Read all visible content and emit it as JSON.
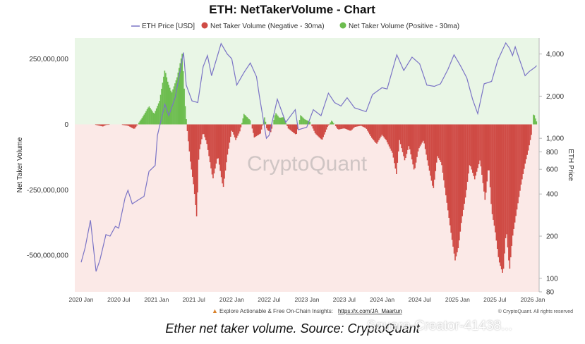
{
  "chart_data": {
    "type": "bar+line",
    "title": "ETH: NetTakerVolume - Chart",
    "legend": {
      "placement": "top-center",
      "entries": [
        {
          "label": "ETH Price [USD]",
          "color": "#7b74c6",
          "marker": "line"
        },
        {
          "label": "Net Taker Volume (Negative - 30ma)",
          "color": "#cf4b45",
          "marker": "dot"
        },
        {
          "label": "Net Taker Volume (Positive - 30ma)",
          "color": "#6dbd4f",
          "marker": "dot"
        }
      ]
    },
    "left_axis": {
      "label": "Net Taker Volume",
      "ticks": [
        250000000,
        0,
        -250000000,
        -500000000
      ],
      "tick_labels": [
        "250,000,000",
        "0",
        "-250,000,000",
        "-500,000,000"
      ],
      "range": [
        -640000000,
        330000000
      ]
    },
    "right_axis": {
      "label": "ETH Price",
      "scale": "log",
      "ticks": [
        4000,
        2000,
        1000,
        800,
        600,
        400,
        200,
        100,
        80
      ],
      "tick_labels": [
        "4,000",
        "2,000",
        "1,000",
        "800",
        "600",
        "400",
        "200",
        "100",
        "80"
      ],
      "range": [
        80,
        5200
      ]
    },
    "x_axis": {
      "range": [
        "2019-12-01",
        "2026-02-01"
      ],
      "ticks": [
        "2020-01",
        "2020-07",
        "2021-01",
        "2021-07",
        "2022-01",
        "2022-07",
        "2023-01",
        "2023-07",
        "2024-01",
        "2024-07",
        "2025-01",
        "2025-07",
        "2026-01"
      ],
      "tick_labels": [
        "2020 Jan",
        "2020 Jul",
        "2021 Jan",
        "2021 Jul",
        "2022 Jan",
        "2022 Jul",
        "2023 Jan",
        "2023 Jul",
        "2024 Jan",
        "2024 Jul",
        "2025 Jan",
        "2025 Jul",
        "2026 Jan"
      ]
    },
    "eth_price_series": {
      "name": "ETH Price [USD]",
      "points": [
        [
          "2020-01-01",
          130
        ],
        [
          "2020-01-20",
          165
        ],
        [
          "2020-02-15",
          260
        ],
        [
          "2020-03-13",
          112
        ],
        [
          "2020-04-01",
          135
        ],
        [
          "2020-04-30",
          205
        ],
        [
          "2020-05-20",
          200
        ],
        [
          "2020-06-15",
          235
        ],
        [
          "2020-07-01",
          228
        ],
        [
          "2020-08-01",
          375
        ],
        [
          "2020-08-15",
          425
        ],
        [
          "2020-09-05",
          340
        ],
        [
          "2020-10-01",
          360
        ],
        [
          "2020-11-01",
          385
        ],
        [
          "2020-11-25",
          580
        ],
        [
          "2020-12-25",
          640
        ],
        [
          "2021-01-05",
          1050
        ],
        [
          "2021-02-10",
          1750
        ],
        [
          "2021-03-01",
          1450
        ],
        [
          "2021-04-01",
          1950
        ],
        [
          "2021-05-12",
          4100
        ],
        [
          "2021-05-25",
          2400
        ],
        [
          "2021-06-22",
          1850
        ],
        [
          "2021-07-20",
          1800
        ],
        [
          "2021-08-15",
          3250
        ],
        [
          "2021-09-05",
          3900
        ],
        [
          "2021-09-25",
          2800
        ],
        [
          "2021-11-10",
          4750
        ],
        [
          "2021-12-10",
          4000
        ],
        [
          "2022-01-01",
          3700
        ],
        [
          "2022-01-25",
          2400
        ],
        [
          "2022-03-01",
          2950
        ],
        [
          "2022-04-01",
          3450
        ],
        [
          "2022-05-01",
          2750
        ],
        [
          "2022-05-15",
          2000
        ],
        [
          "2022-06-18",
          1000
        ],
        [
          "2022-07-01",
          1050
        ],
        [
          "2022-08-10",
          1900
        ],
        [
          "2022-09-20",
          1300
        ],
        [
          "2022-11-05",
          1600
        ],
        [
          "2022-11-20",
          1150
        ],
        [
          "2022-12-31",
          1200
        ],
        [
          "2023-02-01",
          1600
        ],
        [
          "2023-03-10",
          1450
        ],
        [
          "2023-04-15",
          2100
        ],
        [
          "2023-05-15",
          1800
        ],
        [
          "2023-06-15",
          1700
        ],
        [
          "2023-07-15",
          1950
        ],
        [
          "2023-08-20",
          1650
        ],
        [
          "2023-10-15",
          1550
        ],
        [
          "2023-11-15",
          2050
        ],
        [
          "2023-12-31",
          2300
        ],
        [
          "2024-01-25",
          2250
        ],
        [
          "2024-03-12",
          3950
        ],
        [
          "2024-04-15",
          3050
        ],
        [
          "2024-05-25",
          3800
        ],
        [
          "2024-07-01",
          3400
        ],
        [
          "2024-08-05",
          2400
        ],
        [
          "2024-09-10",
          2350
        ],
        [
          "2024-10-10",
          2450
        ],
        [
          "2024-11-15",
          3100
        ],
        [
          "2024-12-15",
          3950
        ],
        [
          "2025-01-15",
          3300
        ],
        [
          "2025-02-15",
          2700
        ],
        [
          "2025-03-15",
          1900
        ],
        [
          "2025-04-09",
          1500
        ],
        [
          "2025-05-10",
          2450
        ],
        [
          "2025-06-15",
          2550
        ],
        [
          "2025-07-15",
          3600
        ],
        [
          "2025-08-23",
          4800
        ],
        [
          "2025-09-10",
          4400
        ],
        [
          "2025-09-25",
          3900
        ],
        [
          "2025-10-08",
          4500
        ],
        [
          "2025-11-05",
          3400
        ],
        [
          "2025-11-25",
          2800
        ],
        [
          "2025-12-15",
          3000
        ],
        [
          "2026-01-10",
          3200
        ],
        [
          "2026-01-20",
          3300
        ]
      ]
    },
    "net_taker_volume_series": {
      "name": "Net Taker Volume (30ma)",
      "points": [
        [
          "2020-01-01",
          0
        ],
        [
          "2020-03-01",
          0
        ],
        [
          "2020-04-15",
          -8000000
        ],
        [
          "2020-05-01",
          -2000000
        ],
        [
          "2020-07-01",
          0
        ],
        [
          "2020-08-15",
          -5000000
        ],
        [
          "2020-09-15",
          -18000000
        ],
        [
          "2020-10-01",
          0
        ],
        [
          "2020-10-25",
          28000000
        ],
        [
          "2020-11-25",
          70000000
        ],
        [
          "2020-12-20",
          40000000
        ],
        [
          "2021-01-15",
          90000000
        ],
        [
          "2021-02-10",
          210000000
        ],
        [
          "2021-02-25",
          160000000
        ],
        [
          "2021-03-15",
          120000000
        ],
        [
          "2021-04-10",
          180000000
        ],
        [
          "2021-05-05",
          270000000
        ],
        [
          "2021-05-20",
          70000000
        ],
        [
          "2021-05-28",
          -10000000
        ],
        [
          "2021-06-15",
          -150000000
        ],
        [
          "2021-07-01",
          -240000000
        ],
        [
          "2021-07-15",
          -360000000
        ],
        [
          "2021-07-25",
          -110000000
        ],
        [
          "2021-08-15",
          -30000000
        ],
        [
          "2021-09-01",
          -70000000
        ],
        [
          "2021-10-01",
          -210000000
        ],
        [
          "2021-10-25",
          -120000000
        ],
        [
          "2021-11-20",
          -245000000
        ],
        [
          "2021-12-10",
          -120000000
        ],
        [
          "2022-01-01",
          -20000000
        ],
        [
          "2022-01-20",
          -60000000
        ],
        [
          "2022-02-10",
          -25000000
        ],
        [
          "2022-03-01",
          40000000
        ],
        [
          "2022-04-01",
          15000000
        ],
        [
          "2022-04-20",
          -50000000
        ],
        [
          "2022-05-20",
          -35000000
        ],
        [
          "2022-06-10",
          30000000
        ],
        [
          "2022-06-20",
          -20000000
        ],
        [
          "2022-07-10",
          -30000000
        ],
        [
          "2022-08-01",
          45000000
        ],
        [
          "2022-08-20",
          25000000
        ],
        [
          "2022-09-10",
          28000000
        ],
        [
          "2022-10-01",
          -15000000
        ],
        [
          "2022-11-10",
          -40000000
        ],
        [
          "2022-12-01",
          35000000
        ],
        [
          "2022-12-20",
          20000000
        ],
        [
          "2023-01-15",
          10000000
        ],
        [
          "2023-02-10",
          -35000000
        ],
        [
          "2023-03-15",
          -60000000
        ],
        [
          "2023-04-10",
          -10000000
        ],
        [
          "2023-05-01",
          15000000
        ],
        [
          "2023-06-01",
          -20000000
        ],
        [
          "2023-07-01",
          -15000000
        ],
        [
          "2023-08-01",
          -25000000
        ],
        [
          "2023-08-20",
          -10000000
        ],
        [
          "2023-09-20",
          -5000000
        ],
        [
          "2023-10-15",
          -15000000
        ],
        [
          "2023-11-10",
          -50000000
        ],
        [
          "2023-12-05",
          -75000000
        ],
        [
          "2023-12-31",
          -40000000
        ],
        [
          "2024-01-20",
          -60000000
        ],
        [
          "2024-02-20",
          -110000000
        ],
        [
          "2024-03-10",
          -190000000
        ],
        [
          "2024-03-25",
          -60000000
        ],
        [
          "2024-04-20",
          -140000000
        ],
        [
          "2024-05-10",
          -80000000
        ],
        [
          "2024-06-05",
          -180000000
        ],
        [
          "2024-06-25",
          -95000000
        ],
        [
          "2024-07-20",
          -60000000
        ],
        [
          "2024-08-10",
          -150000000
        ],
        [
          "2024-09-05",
          -250000000
        ],
        [
          "2024-09-25",
          -120000000
        ],
        [
          "2024-10-15",
          -150000000
        ],
        [
          "2024-11-10",
          -300000000
        ],
        [
          "2024-12-01",
          -420000000
        ],
        [
          "2024-12-20",
          -520000000
        ],
        [
          "2025-01-05",
          -470000000
        ],
        [
          "2025-01-20",
          -370000000
        ],
        [
          "2025-02-10",
          -270000000
        ],
        [
          "2025-03-01",
          -150000000
        ],
        [
          "2025-03-25",
          -210000000
        ],
        [
          "2025-04-20",
          -135000000
        ],
        [
          "2025-05-15",
          -295000000
        ],
        [
          "2025-06-01",
          -150000000
        ],
        [
          "2025-06-15",
          -330000000
        ],
        [
          "2025-07-01",
          -400000000
        ],
        [
          "2025-07-20",
          -520000000
        ],
        [
          "2025-08-10",
          -575000000
        ],
        [
          "2025-08-25",
          -400000000
        ],
        [
          "2025-09-10",
          -560000000
        ],
        [
          "2025-09-25",
          -430000000
        ],
        [
          "2025-10-15",
          -330000000
        ],
        [
          "2025-11-05",
          -230000000
        ],
        [
          "2025-11-25",
          -150000000
        ],
        [
          "2025-12-10",
          -100000000
        ],
        [
          "2025-12-25",
          -40000000
        ],
        [
          "2026-01-05",
          45000000
        ],
        [
          "2026-01-15",
          20000000
        ],
        [
          "2026-01-22",
          5000000
        ]
      ]
    },
    "colors": {
      "positive_region": "#e9f6e6",
      "negative_region": "#fbe9e7",
      "negative_bar": "#cf4b45",
      "positive_bar": "#6dbd4f",
      "price_line": "#7b74c6"
    },
    "watermark": "CryptoQuant",
    "footer": {
      "prefix": "Explore Actionable & Free On-Chain Insights: ",
      "link": "https://x.com/JA_Maartun",
      "copyright": "© CryptoQuant. All rights reserved"
    }
  },
  "caption": "Ether net taker volume. Source: CryptoQuant",
  "overlay_credit": "Square-Creator-41438..."
}
